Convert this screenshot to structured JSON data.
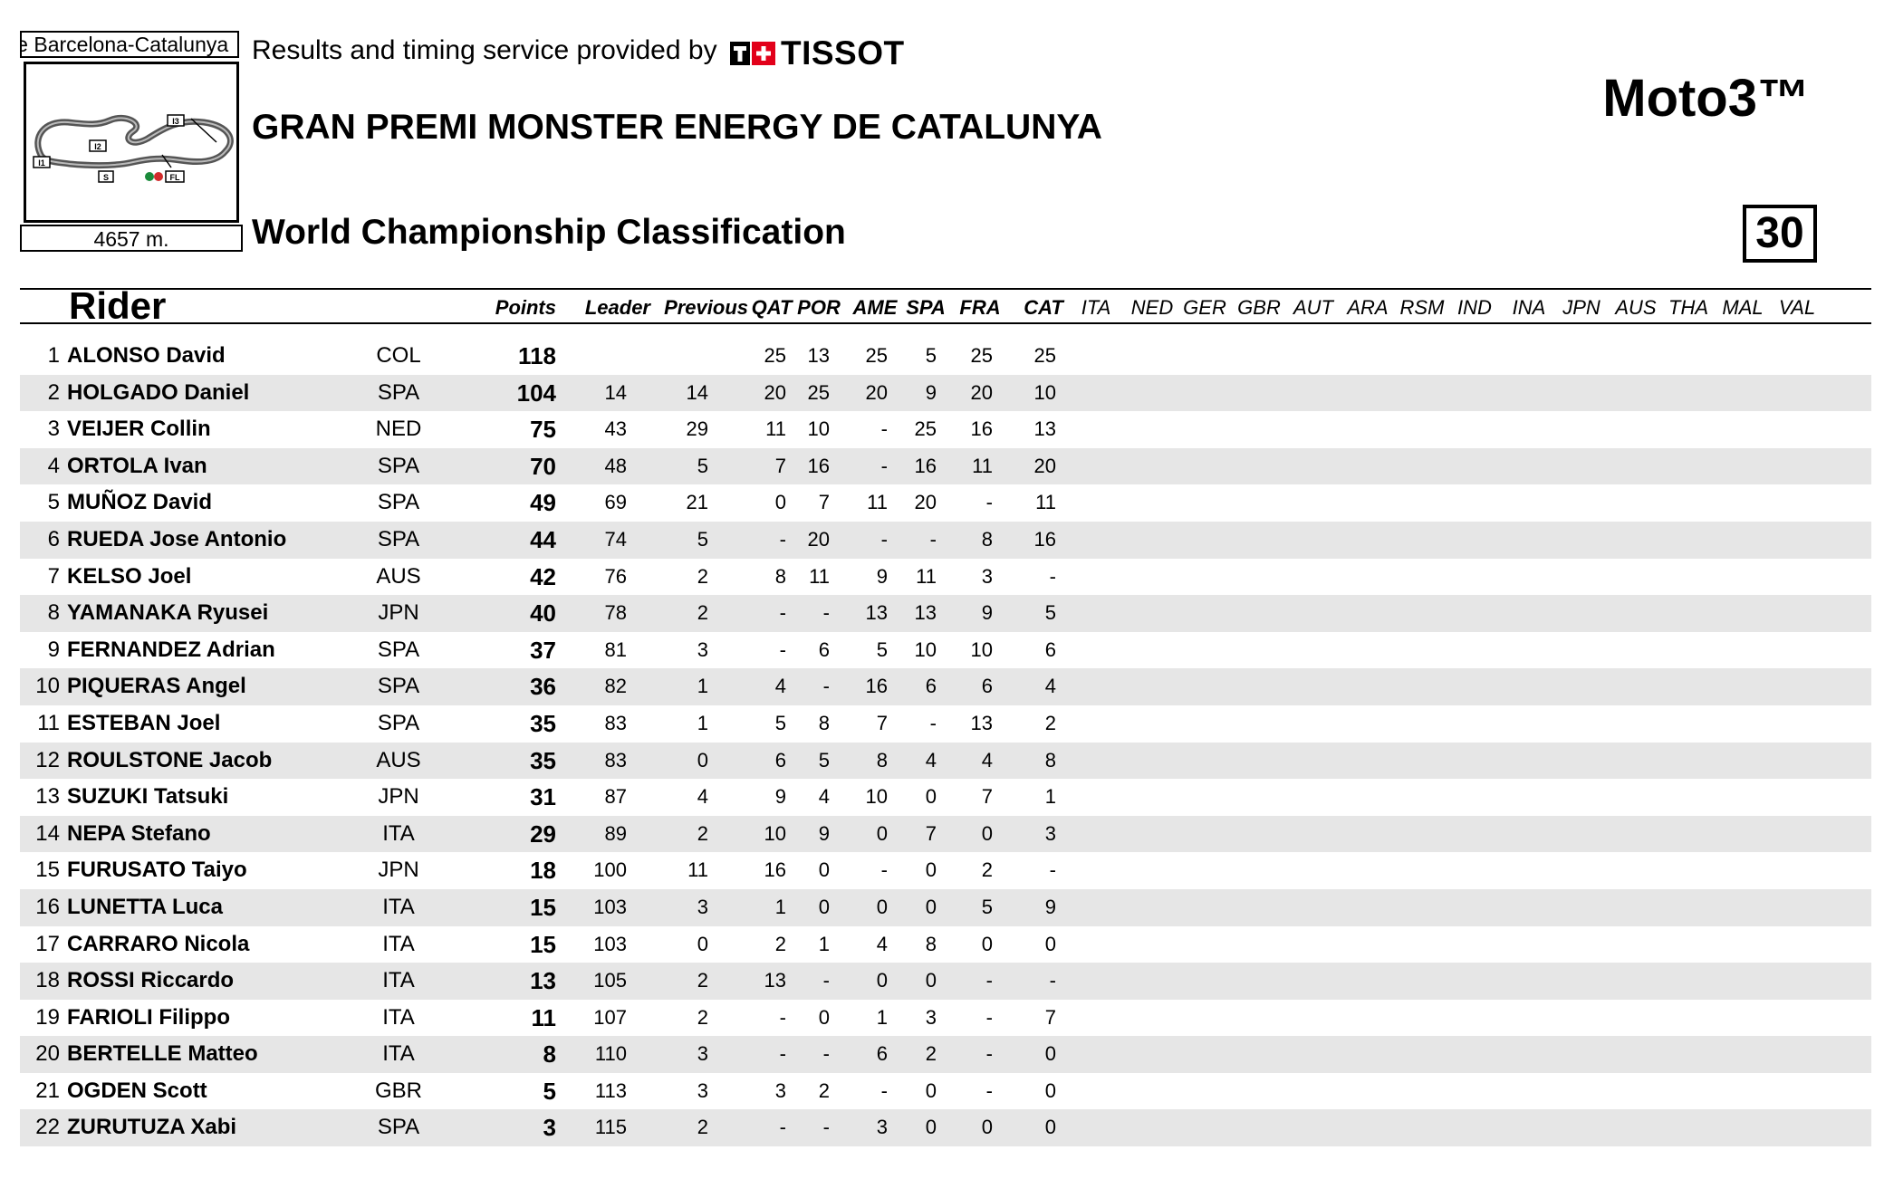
{
  "header": {
    "circuit_name": "Circuit de Barcelona-Catalunya",
    "circuit_length": "4657 m.",
    "timing_text": "Results and timing service provided by",
    "brand": "TISSOT",
    "event_title": "GRAN PREMI MONSTER ENERGY DE CATALUNYA",
    "classification_title": "World Championship Classification",
    "class_title": "Moto3™",
    "round_number": "30",
    "track_map_labels": [
      "I1",
      "I2",
      "I3",
      "FL"
    ]
  },
  "columns": {
    "rider": "Rider",
    "points": "Points",
    "leader": "Leader",
    "previous": "Previous",
    "races": [
      "QAT",
      "POR",
      "AME",
      "SPA",
      "FRA",
      "CAT",
      "ITA",
      "NED",
      "GER",
      "GBR",
      "AUT",
      "ARA",
      "RSM",
      "IND",
      "INA",
      "JPN",
      "AUS",
      "THA",
      "MAL",
      "VAL"
    ]
  },
  "rows": [
    {
      "pos": "1",
      "name": "ALONSO David",
      "nat": "COL",
      "points": "118",
      "leader": "",
      "previous": "",
      "r": [
        "25",
        "13",
        "25",
        "5",
        "25",
        "25"
      ]
    },
    {
      "pos": "2",
      "name": "HOLGADO Daniel",
      "nat": "SPA",
      "points": "104",
      "leader": "14",
      "previous": "14",
      "r": [
        "20",
        "25",
        "20",
        "9",
        "20",
        "10"
      ]
    },
    {
      "pos": "3",
      "name": "VEIJER Collin",
      "nat": "NED",
      "points": "75",
      "leader": "43",
      "previous": "29",
      "r": [
        "11",
        "10",
        "-",
        "25",
        "16",
        "13"
      ]
    },
    {
      "pos": "4",
      "name": "ORTOLA Ivan",
      "nat": "SPA",
      "points": "70",
      "leader": "48",
      "previous": "5",
      "r": [
        "7",
        "16",
        "-",
        "16",
        "11",
        "20"
      ]
    },
    {
      "pos": "5",
      "name": "MUÑOZ David",
      "nat": "SPA",
      "points": "49",
      "leader": "69",
      "previous": "21",
      "r": [
        "0",
        "7",
        "11",
        "20",
        "-",
        "11"
      ]
    },
    {
      "pos": "6",
      "name": "RUEDA Jose Antonio",
      "nat": "SPA",
      "points": "44",
      "leader": "74",
      "previous": "5",
      "r": [
        "-",
        "20",
        "-",
        "-",
        "8",
        "16"
      ]
    },
    {
      "pos": "7",
      "name": "KELSO Joel",
      "nat": "AUS",
      "points": "42",
      "leader": "76",
      "previous": "2",
      "r": [
        "8",
        "11",
        "9",
        "11",
        "3",
        "-"
      ]
    },
    {
      "pos": "8",
      "name": "YAMANAKA Ryusei",
      "nat": "JPN",
      "points": "40",
      "leader": "78",
      "previous": "2",
      "r": [
        "-",
        "-",
        "13",
        "13",
        "9",
        "5"
      ]
    },
    {
      "pos": "9",
      "name": "FERNANDEZ Adrian",
      "nat": "SPA",
      "points": "37",
      "leader": "81",
      "previous": "3",
      "r": [
        "-",
        "6",
        "5",
        "10",
        "10",
        "6"
      ]
    },
    {
      "pos": "10",
      "name": "PIQUERAS Angel",
      "nat": "SPA",
      "points": "36",
      "leader": "82",
      "previous": "1",
      "r": [
        "4",
        "-",
        "16",
        "6",
        "6",
        "4"
      ]
    },
    {
      "pos": "11",
      "name": "ESTEBAN Joel",
      "nat": "SPA",
      "points": "35",
      "leader": "83",
      "previous": "1",
      "r": [
        "5",
        "8",
        "7",
        "-",
        "13",
        "2"
      ]
    },
    {
      "pos": "12",
      "name": "ROULSTONE Jacob",
      "nat": "AUS",
      "points": "35",
      "leader": "83",
      "previous": "0",
      "r": [
        "6",
        "5",
        "8",
        "4",
        "4",
        "8"
      ]
    },
    {
      "pos": "13",
      "name": "SUZUKI Tatsuki",
      "nat": "JPN",
      "points": "31",
      "leader": "87",
      "previous": "4",
      "r": [
        "9",
        "4",
        "10",
        "0",
        "7",
        "1"
      ]
    },
    {
      "pos": "14",
      "name": "NEPA Stefano",
      "nat": "ITA",
      "points": "29",
      "leader": "89",
      "previous": "2",
      "r": [
        "10",
        "9",
        "0",
        "7",
        "0",
        "3"
      ]
    },
    {
      "pos": "15",
      "name": "FURUSATO Taiyo",
      "nat": "JPN",
      "points": "18",
      "leader": "100",
      "previous": "11",
      "r": [
        "16",
        "0",
        "-",
        "0",
        "2",
        "-"
      ]
    },
    {
      "pos": "16",
      "name": "LUNETTA Luca",
      "nat": "ITA",
      "points": "15",
      "leader": "103",
      "previous": "3",
      "r": [
        "1",
        "0",
        "0",
        "0",
        "5",
        "9"
      ]
    },
    {
      "pos": "17",
      "name": "CARRARO Nicola",
      "nat": "ITA",
      "points": "15",
      "leader": "103",
      "previous": "0",
      "r": [
        "2",
        "1",
        "4",
        "8",
        "0",
        "0"
      ]
    },
    {
      "pos": "18",
      "name": "ROSSI Riccardo",
      "nat": "ITA",
      "points": "13",
      "leader": "105",
      "previous": "2",
      "r": [
        "13",
        "-",
        "0",
        "0",
        "-",
        "-"
      ]
    },
    {
      "pos": "19",
      "name": "FARIOLI Filippo",
      "nat": "ITA",
      "points": "11",
      "leader": "107",
      "previous": "2",
      "r": [
        "-",
        "0",
        "1",
        "3",
        "-",
        "7"
      ]
    },
    {
      "pos": "20",
      "name": "BERTELLE Matteo",
      "nat": "ITA",
      "points": "8",
      "leader": "110",
      "previous": "3",
      "r": [
        "-",
        "-",
        "6",
        "2",
        "-",
        "0"
      ]
    },
    {
      "pos": "21",
      "name": "OGDEN Scott",
      "nat": "GBR",
      "points": "5",
      "leader": "113",
      "previous": "3",
      "r": [
        "3",
        "2",
        "-",
        "0",
        "-",
        "0"
      ]
    },
    {
      "pos": "22",
      "name": "ZURUTUZA Xabi",
      "nat": "SPA",
      "points": "3",
      "leader": "115",
      "previous": "2",
      "r": [
        "-",
        "-",
        "3",
        "0",
        "0",
        "0"
      ]
    }
  ]
}
